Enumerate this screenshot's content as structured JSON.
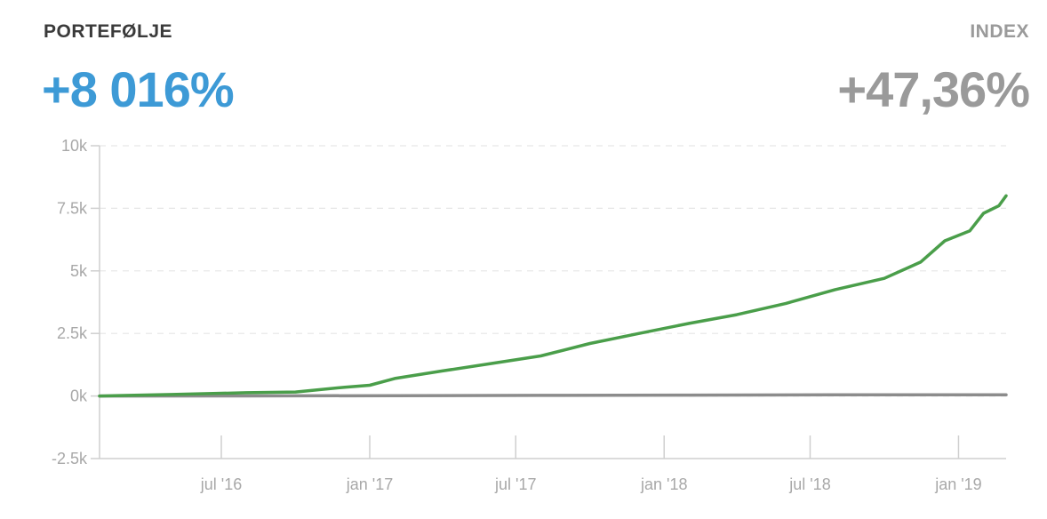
{
  "header": {
    "portfolio_label": "PORTEFØLJE",
    "portfolio_value": "+8 016%",
    "index_label": "INDEX",
    "index_value": "+47,36%"
  },
  "colors": {
    "portfolio_value": "#3d9ad6",
    "index_value": "#9a9a9a",
    "portfolio_line": "#4a9e4a",
    "index_line": "#8c8c8c"
  },
  "chart_data": {
    "type": "line",
    "grid": true,
    "ylim": [
      -2500,
      10000
    ],
    "yticks": [
      {
        "value": 10000,
        "label": "10k"
      },
      {
        "value": 7500,
        "label": "7.5k"
      },
      {
        "value": 5000,
        "label": "5k"
      },
      {
        "value": 2500,
        "label": "2.5k"
      },
      {
        "value": 0,
        "label": "0k"
      },
      {
        "value": -2500,
        "label": "-2.5k"
      }
    ],
    "xlim": [
      "2016-02-01",
      "2019-03-01"
    ],
    "xticks": [
      {
        "value": "2016-07-01",
        "label": "jul '16"
      },
      {
        "value": "2017-01-01",
        "label": "jan '17"
      },
      {
        "value": "2017-07-01",
        "label": "jul '17"
      },
      {
        "value": "2018-01-01",
        "label": "jan '18"
      },
      {
        "value": "2018-07-01",
        "label": "jul '18"
      },
      {
        "value": "2019-01-01",
        "label": "jan '19"
      }
    ],
    "series": [
      {
        "x": [
          "2016-02-01",
          "2016-05-01",
          "2016-08-01",
          "2016-10-01",
          "2016-12-01",
          "2017-01-01",
          "2017-02-01",
          "2017-04-01",
          "2017-06-01",
          "2017-08-01",
          "2017-10-01",
          "2017-12-01",
          "2018-02-01",
          "2018-04-01",
          "2018-06-01",
          "2018-08-01",
          "2018-10-01",
          "2018-11-15",
          "2018-12-15",
          "2019-01-15",
          "2019-02-01",
          "2019-02-20",
          "2019-03-01"
        ],
        "y": [
          0,
          60,
          130,
          160,
          350,
          430,
          700,
          1000,
          1300,
          1600,
          2100,
          2500,
          2900,
          3250,
          3700,
          4250,
          4700,
          5350,
          6200,
          6600,
          7300,
          7600,
          8000
        ]
      },
      {
        "x": [
          "2016-02-01",
          "2016-08-01",
          "2017-02-01",
          "2017-08-01",
          "2018-02-01",
          "2018-08-01",
          "2019-03-01"
        ],
        "y": [
          0,
          5,
          15,
          25,
          35,
          45,
          47
        ]
      }
    ]
  }
}
